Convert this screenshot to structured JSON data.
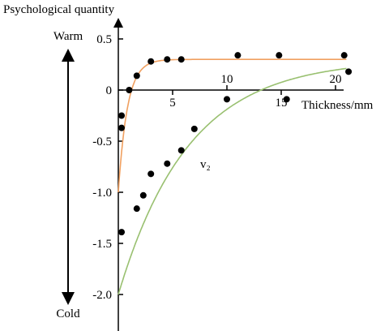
{
  "chart_data": {
    "type": "scatter",
    "ylabel": "Psychological quantity",
    "xlabel": "Thickness/mm",
    "ylim": [
      -2.0,
      0.5
    ],
    "xlim": [
      0,
      21
    ],
    "x_ticks": [
      5,
      10,
      15,
      20
    ],
    "y_ticks": [
      0.5,
      0,
      -0.5,
      -1.0,
      -1.5,
      -2.0
    ],
    "y_tick_labels": [
      "0.5",
      "0",
      "-0.5",
      "-1.0",
      "-1.5",
      "-2.0"
    ],
    "x_tick_labels": [
      "5",
      "10",
      "15",
      "20"
    ],
    "scale_top_label": "Warm",
    "scale_bottom_label": "Cold",
    "series": [
      {
        "color": "#f0a060",
        "points": [
          [
            0.3,
            -0.25
          ],
          [
            0.3,
            -0.37
          ],
          [
            1.0,
            0.0
          ],
          [
            1.7,
            0.14
          ],
          [
            3.0,
            0.28
          ],
          [
            4.5,
            0.3
          ],
          [
            5.8,
            0.3
          ],
          [
            11.0,
            0.34
          ],
          [
            14.8,
            0.34
          ],
          [
            20.8,
            0.34
          ]
        ],
        "fit": {
          "a": -1.0,
          "asymptote": 0.3,
          "rate": 1.2
        }
      },
      {
        "name": "v₂",
        "color": "#99c070",
        "points": [
          [
            0.3,
            -1.39
          ],
          [
            1.7,
            -1.16
          ],
          [
            2.3,
            -1.03
          ],
          [
            3.0,
            -0.82
          ],
          [
            4.5,
            -0.72
          ],
          [
            5.8,
            -0.59
          ],
          [
            7.0,
            -0.38
          ],
          [
            10.0,
            -0.09
          ],
          [
            15.5,
            -0.09
          ],
          [
            21.2,
            0.18
          ]
        ],
        "fit": {
          "a": -2.0,
          "asymptote": 0.3,
          "rate": 0.155
        }
      }
    ]
  }
}
